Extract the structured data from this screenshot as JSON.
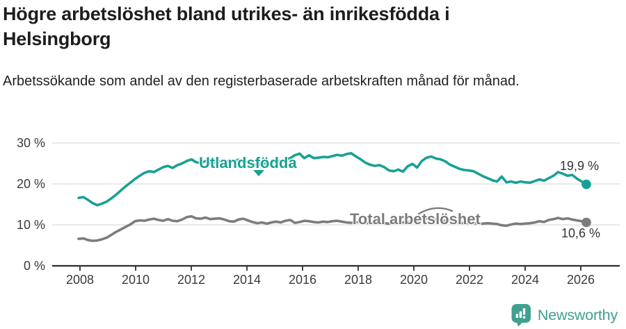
{
  "header": {
    "title": "Högre arbetslöshet bland utrikes- än inrikesfödda i Helsingborg",
    "subtitle": "Arbetssökande som andel av den registerbaserade arbetskraften månad för månad."
  },
  "chart_data": {
    "type": "line",
    "title": "Högre arbetslöshet bland utrikes- än inrikesfödda i Helsingborg",
    "xlabel": "",
    "ylabel": "",
    "xlim": [
      2008,
      2026.2
    ],
    "ylim": [
      0,
      32
    ],
    "grid": "horizontal",
    "legend_position": "inline-labels-on-lines",
    "x_start": 2008.0,
    "x_step_months": 2,
    "x_ticks": [
      {
        "value": 2008,
        "label": "2008"
      },
      {
        "value": 2010,
        "label": "2010"
      },
      {
        "value": 2012,
        "label": "2012"
      },
      {
        "value": 2014,
        "label": "2014"
      },
      {
        "value": 2016,
        "label": "2016"
      },
      {
        "value": 2018,
        "label": "2018"
      },
      {
        "value": 2020,
        "label": "2020"
      },
      {
        "value": 2022,
        "label": "2022"
      },
      {
        "value": 2024,
        "label": "2024"
      },
      {
        "value": 2026,
        "label": "2026"
      }
    ],
    "y_ticks": [
      {
        "value": 30,
        "label": "30 %"
      },
      {
        "value": 20,
        "label": "20 %"
      },
      {
        "value": 10,
        "label": "10 %"
      },
      {
        "value": 0,
        "label": "0 %"
      }
    ],
    "series": [
      {
        "name": "Utlandsfödda",
        "color": "#18a193",
        "end_label": "19,9 %",
        "end_value": 19.9,
        "values": [
          16.6,
          16.8,
          16.1,
          15.3,
          14.8,
          15.2,
          15.7,
          16.5,
          17.4,
          18.4,
          19.4,
          20.3,
          21.2,
          22.0,
          22.7,
          23.1,
          22.9,
          23.5,
          24.1,
          24.4,
          23.9,
          24.6,
          25.0,
          25.6,
          26.0,
          25.3,
          25.1,
          25.6,
          25.1,
          25.3,
          25.5,
          25.8,
          25.4,
          25.6,
          25.9,
          25.6,
          25.3,
          24.9,
          24.5,
          24.8,
          25.1,
          25.4,
          25.7,
          25.5,
          25.9,
          26.3,
          27.0,
          27.4,
          26.3,
          27.0,
          26.3,
          26.4,
          26.6,
          26.5,
          26.8,
          27.1,
          26.9,
          27.3,
          27.5,
          26.7,
          26.0,
          25.2,
          24.7,
          24.4,
          24.6,
          24.1,
          23.3,
          23.1,
          23.5,
          23.0,
          24.3,
          24.9,
          24.0,
          25.6,
          26.4,
          26.7,
          26.2,
          26.0,
          25.5,
          24.7,
          24.2,
          23.7,
          23.4,
          23.3,
          23.1,
          22.5,
          21.9,
          21.4,
          20.9,
          20.6,
          21.8,
          20.4,
          20.6,
          20.3,
          20.6,
          20.4,
          20.3,
          20.7,
          21.1,
          20.8,
          21.4,
          22.0,
          22.9,
          22.5,
          22.0,
          22.2,
          21.3,
          20.6,
          19.9
        ]
      },
      {
        "name": "Total arbetslöshet",
        "color": "#7c7c7c",
        "end_label": "10,6 %",
        "end_value": 10.6,
        "values": [
          6.6,
          6.7,
          6.3,
          6.1,
          6.2,
          6.5,
          6.9,
          7.6,
          8.3,
          8.9,
          9.5,
          10.1,
          10.9,
          11.1,
          11.0,
          11.3,
          11.5,
          11.2,
          11.0,
          11.4,
          11.0,
          10.9,
          11.3,
          11.9,
          12.1,
          11.6,
          11.5,
          11.8,
          11.4,
          11.5,
          11.6,
          11.3,
          10.9,
          10.8,
          11.3,
          11.5,
          11.1,
          10.7,
          10.4,
          10.6,
          10.3,
          10.6,
          10.8,
          10.6,
          11.0,
          11.2,
          10.5,
          10.7,
          11.0,
          10.9,
          10.7,
          10.6,
          10.8,
          10.7,
          10.9,
          11.0,
          10.8,
          10.6,
          10.5,
          10.7,
          10.6,
          10.5,
          10.4,
          10.3,
          10.5,
          10.4,
          10.3,
          10.4,
          10.5,
          10.6,
          10.7,
          10.8,
          11.0,
          11.3,
          11.6,
          11.5,
          11.3,
          11.2,
          11.0,
          10.8,
          10.6,
          10.5,
          10.4,
          10.4,
          10.4,
          10.3,
          10.3,
          10.4,
          10.3,
          10.2,
          9.9,
          9.8,
          10.1,
          10.3,
          10.2,
          10.3,
          10.4,
          10.6,
          10.9,
          10.7,
          11.2,
          11.4,
          11.7,
          11.4,
          11.6,
          11.3,
          11.1,
          10.9,
          10.6
        ]
      }
    ]
  },
  "colors": {
    "title_text": "#1d1d1d",
    "axis_text": "#3a3a3a",
    "axis_line": "#2e2e2e",
    "gridline": "#dcdcdc",
    "value_label_text": "#333333",
    "brand": "#3fa08f"
  },
  "footer": {
    "brand": "Newsworthy"
  }
}
